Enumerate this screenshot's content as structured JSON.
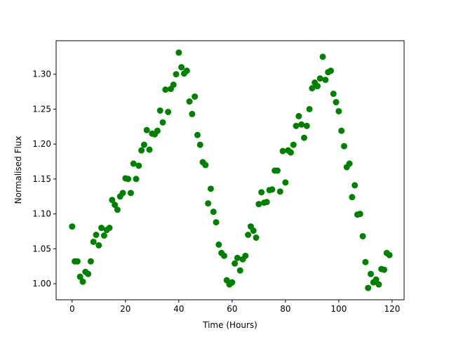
{
  "chart_data": {
    "type": "scatter",
    "xlabel": "Time (Hours)",
    "ylabel": "Normalised Flux",
    "color": "#008000",
    "x": [
      0,
      1,
      2,
      3,
      4,
      5,
      6,
      7,
      8,
      9,
      10,
      11,
      12,
      13,
      14,
      15,
      16,
      17,
      18,
      19,
      20,
      21,
      22,
      23,
      24,
      25,
      26,
      27,
      28,
      29,
      30,
      31,
      32,
      33,
      34,
      35,
      36,
      37,
      38,
      39,
      40,
      41,
      42,
      43,
      44,
      45,
      46,
      47,
      48,
      49,
      50,
      51,
      52,
      53,
      54,
      55,
      56,
      57,
      58,
      59,
      60,
      61,
      62,
      63,
      64,
      65,
      66,
      67,
      68,
      69,
      70,
      71,
      72,
      73,
      74,
      75,
      76,
      77,
      78,
      79,
      80,
      81,
      82,
      83,
      84,
      85,
      86,
      87,
      88,
      89,
      90,
      91,
      92,
      93,
      94,
      95,
      96,
      97,
      98,
      99,
      100,
      101,
      102,
      103,
      104,
      105,
      106,
      107,
      108,
      109,
      110,
      111,
      112,
      113,
      114,
      115,
      116,
      117,
      118,
      119
    ],
    "values": [
      1.082,
      1.032,
      1.032,
      1.01,
      1.003,
      1.017,
      1.014,
      1.032,
      1.06,
      1.07,
      1.055,
      1.08,
      1.069,
      1.077,
      1.08,
      1.12,
      1.113,
      1.106,
      1.125,
      1.13,
      1.151,
      1.15,
      1.13,
      1.172,
      1.15,
      1.169,
      1.191,
      1.199,
      1.22,
      1.192,
      1.215,
      1.214,
      1.219,
      1.248,
      1.231,
      1.278,
      1.246,
      1.279,
      1.285,
      1.3,
      1.331,
      1.31,
      1.301,
      1.305,
      1.261,
      1.243,
      1.268,
      1.213,
      1.199,
      1.174,
      1.17,
      1.115,
      1.136,
      1.103,
      1.088,
      1.056,
      1.044,
      1.04,
      1.005,
      0.999,
      1.002,
      1.029,
      1.037,
      1.019,
      1.035,
      1.04,
      1.07,
      1.082,
      1.076,
      1.066,
      1.114,
      1.131,
      1.116,
      1.117,
      1.134,
      1.135,
      1.162,
      1.162,
      1.132,
      1.19,
      1.145,
      1.191,
      1.188,
      1.199,
      1.226,
      1.24,
      1.228,
      1.209,
      1.226,
      1.25,
      1.28,
      1.288,
      1.283,
      1.294,
      1.325,
      1.292,
      1.303,
      1.305,
      1.272,
      1.26,
      1.247,
      1.219,
      1.197,
      1.167,
      1.172,
      1.124,
      1.141,
      1.099,
      1.1,
      1.068,
      1.031,
      0.994,
      1.014,
      1.002,
      1.006,
      0.999,
      1.021,
      1.02,
      1.044,
      1.041
    ],
    "xlim": [
      -6,
      124.5
    ],
    "ylim": [
      0.977,
      1.348
    ],
    "xticks": [
      0,
      20,
      40,
      60,
      80,
      100,
      120
    ],
    "yticks": [
      {
        "value": 1.0,
        "label": "1.00"
      },
      {
        "value": 1.05,
        "label": "1.05"
      },
      {
        "value": 1.1,
        "label": "1.10"
      },
      {
        "value": 1.15,
        "label": "1.15"
      },
      {
        "value": 1.2,
        "label": "1.20"
      },
      {
        "value": 1.25,
        "label": "1.25"
      },
      {
        "value": 1.3,
        "label": "1.30"
      }
    ],
    "grid": false
  }
}
